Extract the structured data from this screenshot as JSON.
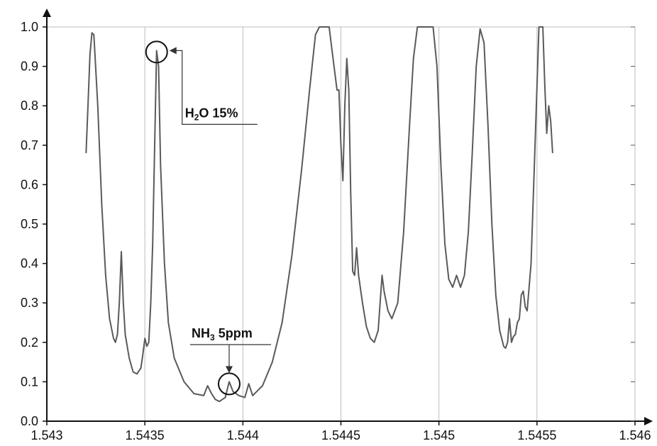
{
  "chart_data": {
    "type": "line",
    "title": "",
    "xlabel": "",
    "ylabel": "",
    "xlim": [
      1.543,
      1.546
    ],
    "ylim": [
      0.0,
      1.0
    ],
    "grid": true,
    "x_ticks": [
      "1.543",
      "1.5435",
      "1.544",
      "1.5445",
      "1.545",
      "1.5455",
      "1.546"
    ],
    "y_ticks": [
      "0.0",
      "0.1",
      "0.2",
      "0.3",
      "0.4",
      "0.5",
      "0.6",
      "0.7",
      "0.8",
      "0.9",
      "1.0"
    ],
    "series": [
      {
        "name": "",
        "color": "#5a5a5a",
        "points": [
          [
            1.5432,
            0.68
          ],
          [
            1.54321,
            0.8
          ],
          [
            1.54322,
            0.93
          ],
          [
            1.54323,
            0.985
          ],
          [
            1.54324,
            0.98
          ],
          [
            1.54326,
            0.8
          ],
          [
            1.54328,
            0.55
          ],
          [
            1.5433,
            0.37
          ],
          [
            1.54332,
            0.26
          ],
          [
            1.54334,
            0.21
          ],
          [
            1.54335,
            0.2
          ],
          [
            1.54336,
            0.22
          ],
          [
            1.54337,
            0.3
          ],
          [
            1.54338,
            0.43
          ],
          [
            1.54339,
            0.3
          ],
          [
            1.5434,
            0.22
          ],
          [
            1.54342,
            0.16
          ],
          [
            1.54344,
            0.125
          ],
          [
            1.54346,
            0.12
          ],
          [
            1.54348,
            0.135
          ],
          [
            1.54349,
            0.17
          ],
          [
            1.5435,
            0.21
          ],
          [
            1.54351,
            0.19
          ],
          [
            1.54352,
            0.2
          ],
          [
            1.54353,
            0.3
          ],
          [
            1.54354,
            0.45
          ],
          [
            1.54355,
            0.7
          ],
          [
            1.54356,
            0.94
          ],
          [
            1.54357,
            0.9
          ],
          [
            1.54358,
            0.65
          ],
          [
            1.5436,
            0.4
          ],
          [
            1.54362,
            0.25
          ],
          [
            1.54365,
            0.16
          ],
          [
            1.5437,
            0.1
          ],
          [
            1.54375,
            0.07
          ],
          [
            1.5438,
            0.065
          ],
          [
            1.54382,
            0.09
          ],
          [
            1.54384,
            0.07
          ],
          [
            1.54386,
            0.055
          ],
          [
            1.54388,
            0.05
          ],
          [
            1.54391,
            0.06
          ],
          [
            1.54393,
            0.1
          ],
          [
            1.54395,
            0.075
          ],
          [
            1.54398,
            0.065
          ],
          [
            1.54401,
            0.06
          ],
          [
            1.54403,
            0.095
          ],
          [
            1.54405,
            0.065
          ],
          [
            1.5441,
            0.09
          ],
          [
            1.54415,
            0.15
          ],
          [
            1.5442,
            0.25
          ],
          [
            1.54425,
            0.42
          ],
          [
            1.5443,
            0.64
          ],
          [
            1.54434,
            0.84
          ],
          [
            1.54437,
            0.98
          ],
          [
            1.54439,
            1.0
          ],
          [
            1.54444,
            1.0
          ],
          [
            1.54446,
            0.92
          ],
          [
            1.54448,
            0.84
          ],
          [
            1.54449,
            0.84
          ],
          [
            1.5445,
            0.7
          ],
          [
            1.54451,
            0.61
          ],
          [
            1.54452,
            0.8
          ],
          [
            1.54453,
            0.92
          ],
          [
            1.54454,
            0.84
          ],
          [
            1.54455,
            0.58
          ],
          [
            1.54456,
            0.38
          ],
          [
            1.54457,
            0.37
          ],
          [
            1.54458,
            0.44
          ],
          [
            1.54459,
            0.37
          ],
          [
            1.54461,
            0.3
          ],
          [
            1.54463,
            0.24
          ],
          [
            1.54465,
            0.21
          ],
          [
            1.54467,
            0.2
          ],
          [
            1.54469,
            0.23
          ],
          [
            1.54471,
            0.37
          ],
          [
            1.54472,
            0.33
          ],
          [
            1.54474,
            0.28
          ],
          [
            1.54476,
            0.26
          ],
          [
            1.54479,
            0.3
          ],
          [
            1.54482,
            0.48
          ],
          [
            1.54485,
            0.75
          ],
          [
            1.54487,
            0.92
          ],
          [
            1.54489,
            1.0
          ],
          [
            1.54497,
            1.0
          ],
          [
            1.54499,
            0.9
          ],
          [
            1.54501,
            0.65
          ],
          [
            1.54503,
            0.45
          ],
          [
            1.54505,
            0.36
          ],
          [
            1.54507,
            0.34
          ],
          [
            1.54509,
            0.37
          ],
          [
            1.54511,
            0.34
          ],
          [
            1.54513,
            0.37
          ],
          [
            1.54515,
            0.48
          ],
          [
            1.54517,
            0.68
          ],
          [
            1.54519,
            0.9
          ],
          [
            1.54521,
            0.995
          ],
          [
            1.54523,
            0.96
          ],
          [
            1.54525,
            0.75
          ],
          [
            1.54527,
            0.5
          ],
          [
            1.54529,
            0.32
          ],
          [
            1.54531,
            0.23
          ],
          [
            1.54533,
            0.19
          ],
          [
            1.54534,
            0.185
          ],
          [
            1.54535,
            0.2
          ],
          [
            1.54536,
            0.26
          ],
          [
            1.54537,
            0.2
          ],
          [
            1.54538,
            0.215
          ],
          [
            1.54539,
            0.22
          ],
          [
            1.5454,
            0.25
          ],
          [
            1.54541,
            0.26
          ],
          [
            1.54542,
            0.32
          ],
          [
            1.54543,
            0.33
          ],
          [
            1.54544,
            0.29
          ],
          [
            1.54545,
            0.28
          ],
          [
            1.54547,
            0.4
          ],
          [
            1.54549,
            0.7
          ],
          [
            1.54551,
            1.0
          ],
          [
            1.54553,
            1.0
          ],
          [
            1.54554,
            0.85
          ],
          [
            1.54555,
            0.73
          ],
          [
            1.54556,
            0.8
          ],
          [
            1.54557,
            0.76
          ],
          [
            1.54558,
            0.68
          ]
        ]
      }
    ],
    "annotations": [
      {
        "main": "H",
        "sub": "2",
        "rest": "O 15%",
        "target_x": 1.54356,
        "target_y": 0.94
      },
      {
        "main": "NH",
        "sub": "3",
        "rest": " 5ppm",
        "target_x": 1.54393,
        "target_y": 0.1
      }
    ]
  }
}
